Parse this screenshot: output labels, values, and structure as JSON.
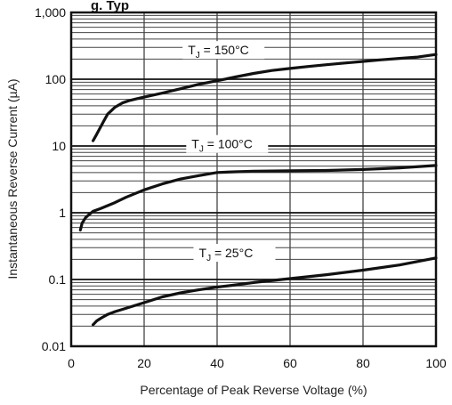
{
  "chart_data": {
    "type": "line",
    "title_fragment": "g. Typ",
    "xlabel": "Percentage of Peak Reverse Voltage (%)",
    "ylabel": "Instantaneous Reverse Current (µA)",
    "xlim": [
      0,
      100
    ],
    "ylim": [
      0.01,
      1000
    ],
    "y_scale": "log",
    "grid": true,
    "x_ticks": [
      "0",
      "20",
      "40",
      "60",
      "80",
      "100"
    ],
    "y_ticks": [
      "0.01",
      "0.1",
      "1",
      "10",
      "100",
      "1,000"
    ],
    "series": [
      {
        "label_prefix": "T",
        "label_sub": "J",
        "label_suffix": " = 150°C",
        "x": [
          6,
          7,
          8,
          9,
          10,
          12,
          14,
          16,
          18,
          20,
          25,
          30,
          35,
          40,
          45,
          50,
          55,
          60,
          65,
          70,
          75,
          80,
          85,
          90,
          95,
          100
        ],
        "y": [
          12,
          15,
          19,
          24,
          30,
          38,
          44,
          48,
          51,
          54,
          62,
          72,
          84,
          95,
          108,
          122,
          135,
          145,
          155,
          165,
          175,
          185,
          195,
          205,
          215,
          235
        ]
      },
      {
        "label_prefix": "T",
        "label_sub": "J",
        "label_suffix": " = 100°C",
        "x": [
          2.5,
          3,
          4,
          5,
          6,
          8,
          10,
          12,
          15,
          20,
          25,
          30,
          35,
          40,
          45,
          50,
          60,
          70,
          80,
          90,
          100
        ],
        "y": [
          0.55,
          0.7,
          0.85,
          0.95,
          1.05,
          1.15,
          1.28,
          1.42,
          1.7,
          2.2,
          2.7,
          3.2,
          3.6,
          4.0,
          4.1,
          4.2,
          4.25,
          4.3,
          4.45,
          4.7,
          5.1
        ]
      },
      {
        "label_prefix": "T",
        "label_sub": "J",
        "label_suffix": " = 25°C",
        "x": [
          6,
          7,
          8,
          9,
          10,
          12,
          15,
          20,
          25,
          30,
          35,
          40,
          45,
          50,
          60,
          70,
          80,
          90,
          100
        ],
        "y": [
          0.021,
          0.024,
          0.026,
          0.028,
          0.03,
          0.033,
          0.037,
          0.045,
          0.055,
          0.063,
          0.07,
          0.077,
          0.083,
          0.09,
          0.103,
          0.118,
          0.138,
          0.165,
          0.21
        ]
      }
    ],
    "colors": {
      "line": "#111111",
      "grid": "#444444",
      "background": "#ffffff"
    }
  }
}
